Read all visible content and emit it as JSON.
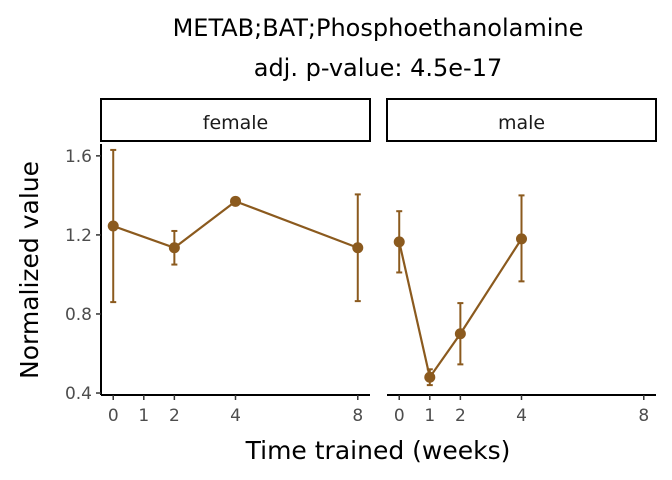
{
  "chart_data": {
    "type": "line",
    "title": "METAB;BAT;Phosphoethanolamine",
    "subtitle": "adj. p-value: 4.5e-17",
    "xlabel": "Time trained (weeks)",
    "ylabel": "Normalized value",
    "x_ticks": [
      0,
      1,
      2,
      4,
      8
    ],
    "y_ticks": [
      "0.4",
      "0.8",
      "1.2",
      "1.6"
    ],
    "y_tick_values": [
      0.4,
      0.8,
      1.2,
      1.6
    ],
    "xlim": [
      -0.4,
      8.4
    ],
    "ylim": [
      0.39,
      1.66
    ],
    "color": "#8B5A1E",
    "grid": false,
    "panels": [
      {
        "name": "female",
        "points": [
          {
            "x": 0,
            "y": 1.245,
            "ymin": 0.86,
            "ymax": 1.63
          },
          {
            "x": 2,
            "y": 1.135,
            "ymin": 1.05,
            "ymax": 1.22
          },
          {
            "x": 4,
            "y": 1.37,
            "ymin": 1.36,
            "ymax": 1.38
          },
          {
            "x": 8,
            "y": 1.135,
            "ymin": 0.865,
            "ymax": 1.405
          }
        ]
      },
      {
        "name": "male",
        "points": [
          {
            "x": 0,
            "y": 1.165,
            "ymin": 1.01,
            "ymax": 1.32
          },
          {
            "x": 1,
            "y": 0.48,
            "ymin": 0.44,
            "ymax": 0.52
          },
          {
            "x": 2,
            "y": 0.7,
            "ymin": 0.545,
            "ymax": 0.855
          },
          {
            "x": 4,
            "y": 1.18,
            "ymin": 0.965,
            "ymax": 1.4
          }
        ]
      }
    ]
  }
}
